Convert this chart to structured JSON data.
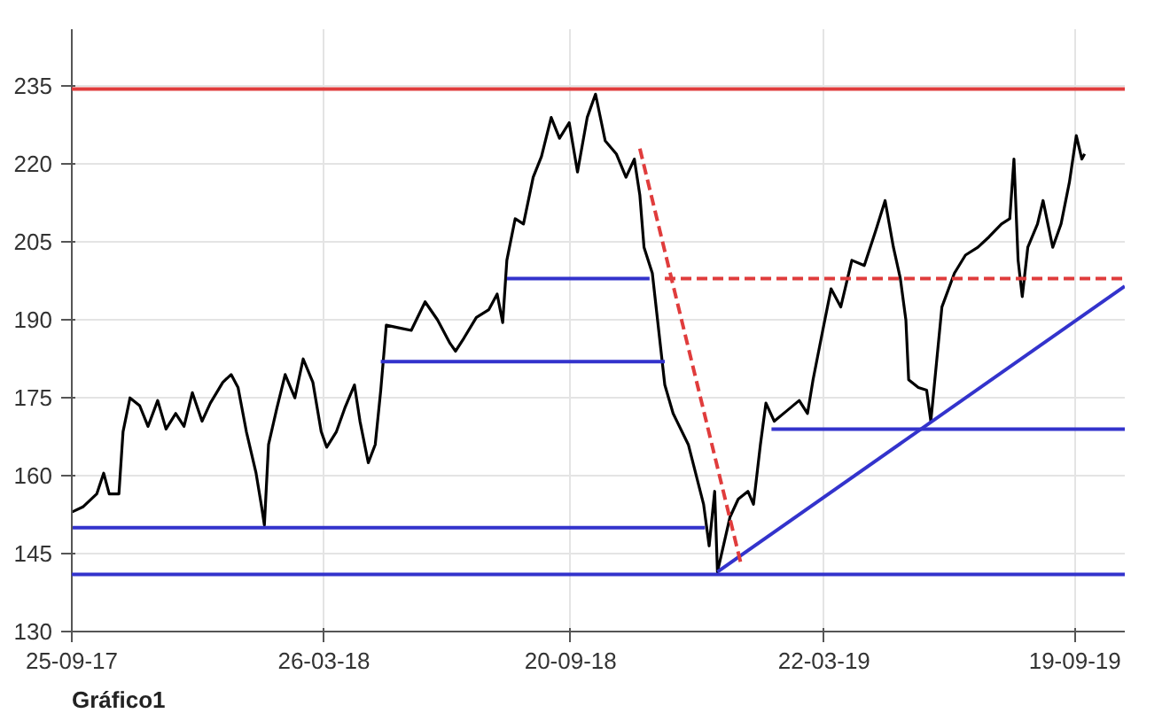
{
  "chart_data": {
    "type": "line",
    "xlim": [
      "2017-09-25",
      "2019-10-25"
    ],
    "ylim": [
      130,
      246
    ],
    "xticks": [
      {
        "value": "2017-09-25",
        "label": "25-09-17"
      },
      {
        "value": "2018-03-26",
        "label": "26-03-18"
      },
      {
        "value": "2018-09-20",
        "label": "20-09-18"
      },
      {
        "value": "2019-03-22",
        "label": "22-03-19"
      },
      {
        "value": "2019-09-19",
        "label": "19-09-19"
      }
    ],
    "yticks": [
      130,
      145,
      160,
      175,
      190,
      205,
      220,
      235
    ],
    "grid": true,
    "annotations": [
      "Gráfico1"
    ],
    "ref_lines": [
      {
        "axis": "y",
        "value": 234.5,
        "color": "#e03c3c",
        "line_style": "solid"
      },
      {
        "axis": "y",
        "value": 141,
        "color": "#3333cc",
        "line_style": "solid"
      }
    ],
    "series": [
      {
        "color": "#000000",
        "line_style": "solid",
        "x": [
          "2017-09-25",
          "2017-10-03",
          "2017-10-13",
          "2017-10-18",
          "2017-10-22",
          "2017-10-29",
          "2017-11-01",
          "2017-11-06",
          "2017-11-13",
          "2017-11-19",
          "2017-11-26",
          "2017-12-02",
          "2017-12-09",
          "2017-12-15",
          "2017-12-21",
          "2017-12-28",
          "2018-01-03",
          "2018-01-12",
          "2018-01-18",
          "2018-01-23",
          "2018-01-29",
          "2018-02-05",
          "2018-02-09",
          "2018-02-11",
          "2018-02-14",
          "2018-02-20",
          "2018-02-26",
          "2018-03-05",
          "2018-03-11",
          "2018-03-18",
          "2018-03-24",
          "2018-03-28",
          "2018-04-04",
          "2018-04-10",
          "2018-04-17",
          "2018-04-21",
          "2018-04-27",
          "2018-05-02",
          "2018-05-06",
          "2018-05-10",
          "2018-05-19",
          "2018-05-28",
          "2018-06-07",
          "2018-06-16",
          "2018-06-25",
          "2018-06-29",
          "2018-07-05",
          "2018-07-14",
          "2018-07-23",
          "2018-07-29",
          "2018-08-02",
          "2018-08-05",
          "2018-08-11",
          "2018-08-17",
          "2018-08-24",
          "2018-08-30",
          "2018-09-06",
          "2018-09-12",
          "2018-09-19",
          "2018-09-25",
          "2018-10-02",
          "2018-10-08",
          "2018-10-15",
          "2018-10-23",
          "2018-10-30",
          "2018-11-05",
          "2018-11-09",
          "2018-11-12",
          "2018-11-18",
          "2018-11-27",
          "2018-12-03",
          "2018-12-14",
          "2018-12-25",
          "2018-12-29",
          "2019-01-02",
          "2019-01-04",
          "2019-01-13",
          "2019-01-19",
          "2019-01-26",
          "2019-01-30",
          "2019-02-04",
          "2019-02-08",
          "2019-02-14",
          "2019-02-23",
          "2019-03-04",
          "2019-03-10",
          "2019-03-14",
          "2019-03-21",
          "2019-03-27",
          "2019-04-03",
          "2019-04-11",
          "2019-04-20",
          "2019-04-28",
          "2019-05-05",
          "2019-05-11",
          "2019-05-16",
          "2019-05-20",
          "2019-05-22",
          "2019-05-29",
          "2019-06-04",
          "2019-06-07",
          "2019-06-15",
          "2019-06-24",
          "2019-07-02",
          "2019-07-11",
          "2019-07-19",
          "2019-07-28",
          "2019-08-03",
          "2019-08-06",
          "2019-08-09",
          "2019-08-12",
          "2019-08-16",
          "2019-08-23",
          "2019-08-27",
          "2019-09-03",
          "2019-09-09",
          "2019-09-15",
          "2019-09-20",
          "2019-09-24",
          "2019-09-26"
        ],
        "values": [
          153,
          154,
          156.5,
          160.5,
          156.5,
          156.5,
          168.5,
          175,
          173.5,
          169.5,
          174.5,
          169,
          172,
          169.5,
          176,
          170.5,
          174,
          178,
          179.5,
          177,
          168.5,
          160.5,
          154,
          150.5,
          166,
          173,
          179.5,
          175,
          182.5,
          178,
          168.5,
          165.5,
          168.5,
          173,
          177.5,
          170.5,
          162.5,
          166,
          176.5,
          189,
          188.5,
          188,
          193.5,
          190,
          185.5,
          184,
          186.5,
          190.5,
          192,
          195,
          189.5,
          201.5,
          209.5,
          208.5,
          217.5,
          221.5,
          229,
          225,
          228,
          218.5,
          229,
          233.5,
          224.5,
          222,
          217.5,
          221,
          214,
          204,
          199,
          177.5,
          172,
          166,
          154.5,
          146.5,
          157,
          141.5,
          152,
          155.5,
          157,
          154.5,
          166,
          174,
          170.5,
          172.5,
          174.5,
          172,
          178.5,
          188,
          196,
          192.5,
          201.5,
          200.5,
          207,
          213,
          204,
          198,
          190,
          178.5,
          177,
          176.5,
          170.5,
          192.5,
          199,
          202.5,
          204,
          206,
          208.5,
          209.5,
          221,
          201.5,
          194.5,
          204,
          208.5,
          213,
          204,
          208.5,
          216.5,
          225.5,
          221,
          222
        ]
      },
      {
        "color": "#3333cc",
        "line_style": "solid",
        "x": [
          "2018-08-05",
          "2018-11-16"
        ],
        "values": [
          198,
          198
        ]
      },
      {
        "color": "#3333cc",
        "line_style": "solid",
        "x": [
          "2018-05-06",
          "2018-11-27"
        ],
        "values": [
          182,
          182
        ]
      },
      {
        "color": "#3333cc",
        "line_style": "solid",
        "x": [
          "2017-09-25",
          "2018-12-26"
        ],
        "values": [
          150,
          150
        ]
      },
      {
        "color": "#3333cc",
        "line_style": "solid",
        "x": [
          "2019-02-12",
          "2019-10-25"
        ],
        "values": [
          169,
          169
        ]
      },
      {
        "color": "#3333cc",
        "line_style": "solid",
        "x": [
          "2019-01-04",
          "2019-10-25"
        ],
        "values": [
          141.5,
          196.5
        ]
      },
      {
        "color": "#e03c3c",
        "line_style": "dashed",
        "x": [
          "2018-11-09",
          "2019-01-21"
        ],
        "values": [
          223,
          143
        ]
      },
      {
        "color": "#e03c3c",
        "line_style": "dashed",
        "x": [
          "2018-11-27",
          "2019-10-25"
        ],
        "values": [
          198,
          198
        ]
      }
    ]
  }
}
